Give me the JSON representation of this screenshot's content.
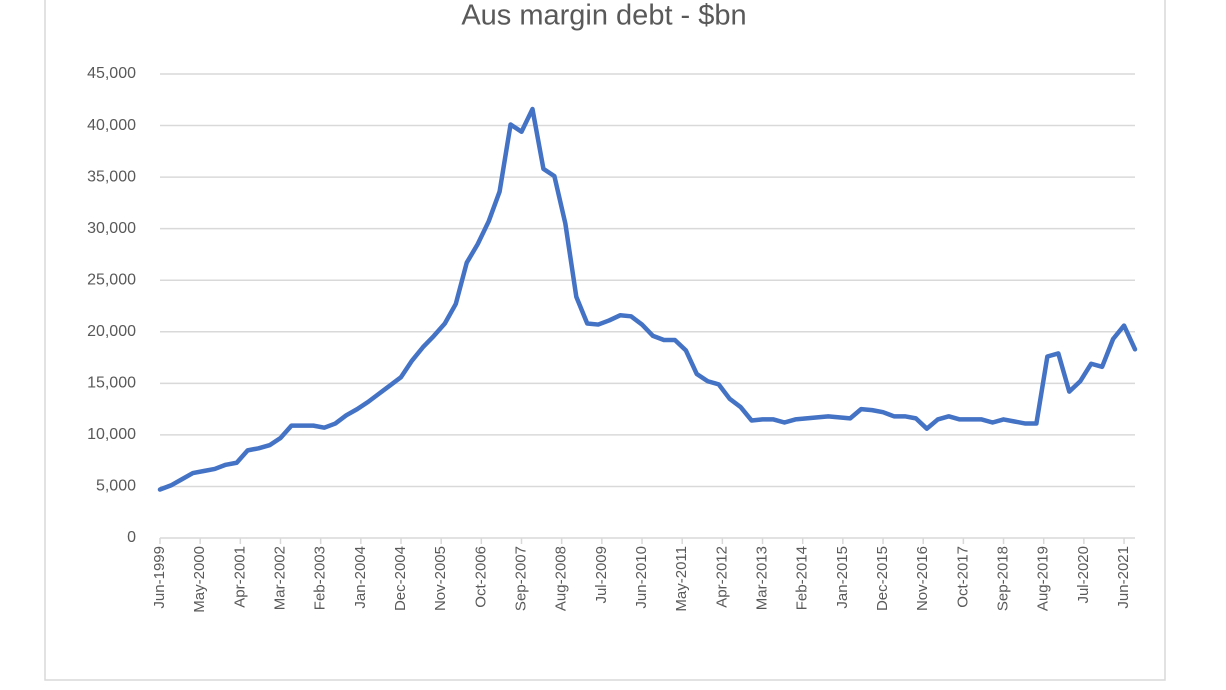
{
  "chart_data": {
    "type": "line",
    "title": "Aus margin debt - $bn",
    "x": [
      "Jun-1999",
      "Sep-1999",
      "Dec-1999",
      "Mar-2000",
      "Jun-2000",
      "Sep-2000",
      "Dec-2000",
      "Mar-2001",
      "Jun-2001",
      "Sep-2001",
      "Dec-2001",
      "Mar-2002",
      "Jun-2002",
      "Sep-2002",
      "Dec-2002",
      "Mar-2003",
      "Jun-2003",
      "Sep-2003",
      "Dec-2003",
      "Mar-2004",
      "Jun-2004",
      "Sep-2004",
      "Dec-2004",
      "Mar-2005",
      "Jun-2005",
      "Sep-2005",
      "Dec-2005",
      "Mar-2006",
      "Jun-2006",
      "Sep-2006",
      "Dec-2006",
      "Mar-2007",
      "Jun-2007",
      "Sep-2007",
      "Dec-2007",
      "Mar-2008",
      "Jun-2008",
      "Sep-2008",
      "Dec-2008",
      "Mar-2009",
      "Jun-2009",
      "Sep-2009",
      "Dec-2009",
      "Mar-2010",
      "Jun-2010",
      "Sep-2010",
      "Dec-2010",
      "Mar-2011",
      "Jun-2011",
      "Sep-2011",
      "Dec-2011",
      "Mar-2012",
      "Jun-2012",
      "Sep-2012",
      "Dec-2012",
      "Mar-2013",
      "Jun-2013",
      "Sep-2013",
      "Dec-2013",
      "Mar-2014",
      "Jun-2014",
      "Sep-2014",
      "Dec-2014",
      "Mar-2015",
      "Jun-2015",
      "Sep-2015",
      "Dec-2015",
      "Mar-2016",
      "Jun-2016",
      "Sep-2016",
      "Dec-2016",
      "Mar-2017",
      "Jun-2017",
      "Sep-2017",
      "Dec-2017",
      "Mar-2018",
      "Jun-2018",
      "Sep-2018",
      "Dec-2018",
      "Mar-2019",
      "Jun-2019",
      "Sep-2019",
      "Dec-2019",
      "Mar-2020",
      "Jun-2020",
      "Sep-2020",
      "Dec-2020",
      "Mar-2021",
      "Jun-2021",
      "Sep-2021"
    ],
    "values": [
      4700,
      5100,
      5700,
      6300,
      6500,
      6700,
      7100,
      7300,
      8500,
      8700,
      9000,
      9700,
      10900,
      10900,
      10900,
      10700,
      11100,
      11900,
      12500,
      13200,
      14000,
      14800,
      15600,
      17200,
      18500,
      19600,
      20800,
      22700,
      26700,
      28500,
      30700,
      33600,
      40100,
      39400,
      41600,
      35800,
      35100,
      30500,
      23400,
      20800,
      20700,
      21100,
      21600,
      21500,
      20700,
      19600,
      19200,
      19200,
      18200,
      15900,
      15200,
      14900,
      13500,
      12700,
      11400,
      11500,
      11500,
      11200,
      11500,
      11600,
      11700,
      11800,
      11700,
      11600,
      12500,
      12400,
      12200,
      11800,
      11800,
      11600,
      10600,
      11500,
      11800,
      11500,
      11500,
      11500,
      11200,
      11500,
      11300,
      11100,
      11100,
      17600,
      17900,
      14200,
      15200,
      16900,
      16600,
      19300,
      20600,
      18300
    ],
    "color": "#4472c4",
    "xlim": [
      "Jun-1999",
      "Sep-2021"
    ],
    "xticks": [
      "Jun-1999",
      "May-2000",
      "Apr-2001",
      "Mar-2002",
      "Feb-2003",
      "Jan-2004",
      "Dec-2004",
      "Nov-2005",
      "Oct-2006",
      "Sep-2007",
      "Aug-2008",
      "Jul-2009",
      "Jun-2010",
      "May-2011",
      "Apr-2012",
      "Mar-2013",
      "Feb-2014",
      "Jan-2015",
      "Dec-2015",
      "Nov-2016",
      "Oct-2017",
      "Sep-2018",
      "Aug-2019",
      "Jul-2020",
      "Jun-2021"
    ],
    "ylim": [
      0,
      45000
    ],
    "yticks": [
      0,
      {
        "value": 5000,
        "label": "5,000"
      },
      {
        "value": 10000,
        "label": "10,000"
      },
      {
        "value": 15000,
        "label": "15,000"
      },
      {
        "value": 20000,
        "label": "20,000"
      },
      {
        "value": 25000,
        "label": "25,000"
      },
      {
        "value": 30000,
        "label": "30,000"
      },
      {
        "value": 35000,
        "label": "35,000"
      },
      {
        "value": 40000,
        "label": "40,000"
      },
      {
        "value": 45000,
        "label": "45,000"
      }
    ],
    "grid": true
  }
}
